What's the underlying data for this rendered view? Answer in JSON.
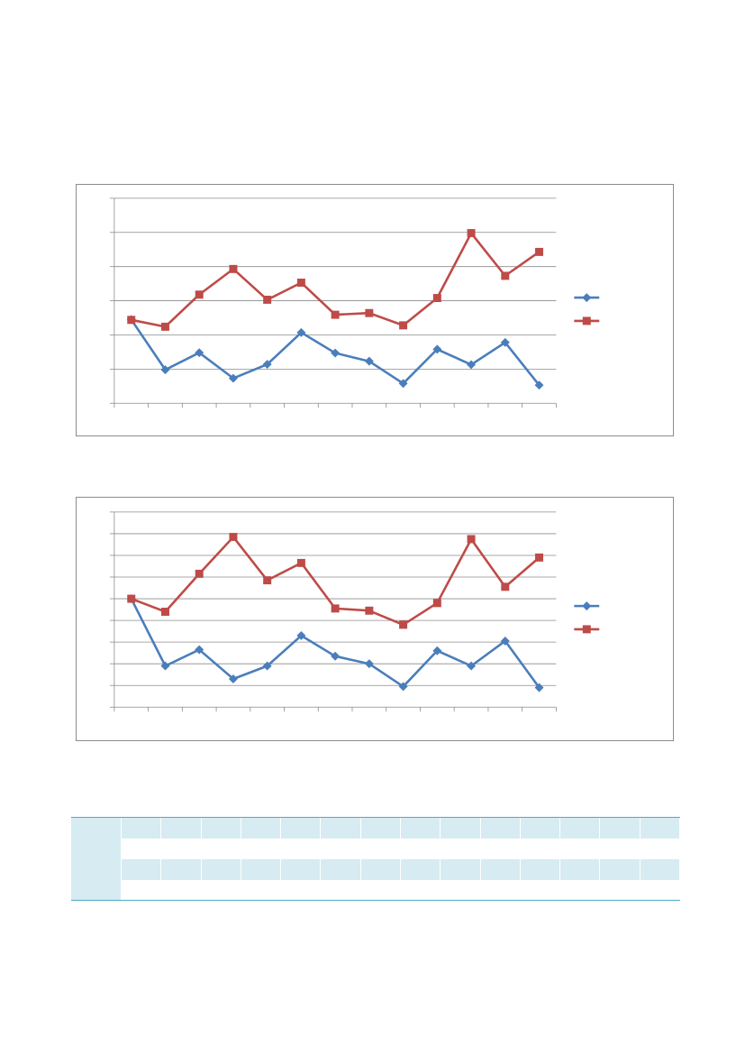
{
  "colors": {
    "series_1": "#4a7ebb",
    "series_2": "#be4b48",
    "gridline": "#8c8c8c",
    "frame": "#8c8c8c",
    "table_band": "#d7ebf2",
    "table_rule": "#4bacc6"
  },
  "chart_data": [
    {
      "type": "line",
      "categories": [
        "",
        "",
        "",
        "",
        "",
        "",
        "",
        "",
        "",
        "",
        "",
        "",
        ""
      ],
      "ylim": [
        0,
        6
      ],
      "grid": true,
      "legend": "right",
      "series": [
        {
          "marker": "diamond",
          "color": "#4a7ebb",
          "values": [
            2.45,
            0.98,
            1.48,
            0.73,
            1.14,
            2.07,
            1.47,
            1.23,
            0.58,
            1.58,
            1.13,
            1.78,
            0.53
          ]
        },
        {
          "marker": "square",
          "color": "#be4b48",
          "values": [
            2.44,
            2.24,
            3.18,
            3.93,
            3.03,
            3.53,
            2.59,
            2.64,
            2.28,
            3.08,
            4.98,
            3.73,
            4.43
          ]
        }
      ]
    },
    {
      "type": "line",
      "categories": [
        "",
        "",
        "",
        "",
        "",
        "",
        "",
        "",
        "",
        "",
        "",
        "",
        ""
      ],
      "ylim": [
        0,
        9
      ],
      "grid": true,
      "legend": "right",
      "series": [
        {
          "marker": "diamond",
          "color": "#4a7ebb",
          "values": [
            5.0,
            1.9,
            2.65,
            1.3,
            1.9,
            3.3,
            2.35,
            2.0,
            0.95,
            2.6,
            1.9,
            3.05,
            0.9
          ]
        },
        {
          "marker": "square",
          "color": "#be4b48",
          "values": [
            5.0,
            4.4,
            6.15,
            7.85,
            5.85,
            6.65,
            4.55,
            4.45,
            3.8,
            4.8,
            7.75,
            5.55,
            6.9
          ]
        }
      ]
    }
  ],
  "table": {
    "header": [
      "",
      "",
      "",
      "",
      "",
      "",
      "",
      "",
      "",
      "",
      "",
      "",
      "",
      "",
      ""
    ],
    "rows": [
      [
        "",
        "",
        "",
        "",
        "",
        "",
        "",
        "",
        "",
        "",
        "",
        "",
        "",
        "",
        ""
      ],
      [
        "",
        "",
        "",
        "",
        "",
        "",
        "",
        "",
        "",
        "",
        "",
        "",
        "",
        "",
        ""
      ],
      [
        "",
        "",
        "",
        "",
        "",
        "",
        "",
        "",
        "",
        "",
        "",
        "",
        "",
        "",
        ""
      ],
      [
        "",
        "",
        "",
        "",
        "",
        "",
        "",
        "",
        "",
        "",
        "",
        "",
        "",
        "",
        ""
      ]
    ]
  }
}
